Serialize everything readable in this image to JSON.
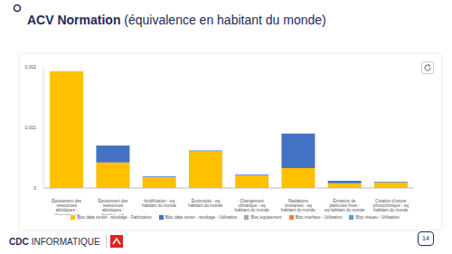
{
  "chart_data": {
    "type": "bar",
    "title": "ACV Normation",
    "subtitle": "(équivalence en habitant du monde)",
    "stacked": true,
    "grid": false,
    "legend": "bottom",
    "categories": [
      "Épuisement des ressources abiotiques - éléments - eq habitant du monde",
      "Épuisement des ressources abiotiques - fossiles - eq habitant du monde",
      "Acidification - eq habitant du monde",
      "Écotoxicité - eq habitant du monde",
      "Changement climatique - eq habitant du monde",
      "Radiations ionisantes - eq habitant du monde",
      "Émission de particules fines - eq habitant du monde",
      "Création d'ozone photochimique - eq habitant du monde"
    ],
    "series": [
      {
        "name": "Bloc data center - stockage - Fabrication",
        "color": "#ffc000",
        "values": [
          0.00193,
          0.00042,
          0.00018,
          0.00061,
          0.00021,
          0.00033,
          8e-05,
          9e-05
        ]
      },
      {
        "name": "Bloc data center - stockage - Utilisation",
        "color": "#4472c4",
        "values": [
          0,
          0.00028,
          1e-05,
          1e-05,
          1e-05,
          0.00057,
          4e-05,
          1e-05
        ]
      },
      {
        "name": "Bloc équipement",
        "color": "#a5a5a5",
        "values": [
          0,
          0,
          0,
          0,
          0,
          0,
          0,
          0
        ]
      },
      {
        "name": "Bloc interface - Utilisation",
        "color": "#ed7d31",
        "values": [
          0,
          0,
          0,
          0,
          0,
          0,
          0,
          0
        ]
      },
      {
        "name": "Bloc réseau - Utilisation",
        "color": "#5b9bd5",
        "values": [
          0,
          0,
          0,
          0,
          0,
          0,
          0,
          0
        ]
      }
    ],
    "ylim": [
      0,
      0.002
    ],
    "yticks": [
      0,
      {
        "value": 0.001,
        "label": "0,001"
      },
      {
        "value": 0.002,
        "label": "0,002"
      }
    ]
  },
  "footer": {
    "brand_bold": "CDC",
    "brand_rest": "INFORMATIQUE",
    "page": "14"
  }
}
